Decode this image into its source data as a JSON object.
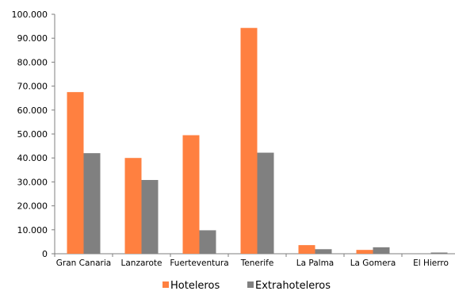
{
  "chart_data": {
    "type": "bar",
    "title": "",
    "xlabel": "",
    "ylabel": "",
    "ylim": [
      0,
      100000
    ],
    "y_ticks": [
      "0",
      "10.000",
      "20.000",
      "30.000",
      "40.000",
      "50.000",
      "60.000",
      "70.000",
      "80.000",
      "90.000",
      "100.000"
    ],
    "categories": [
      "Gran Canaria",
      "Lanzarote",
      "Fuerteventura",
      "Tenerife",
      "La Palma",
      "La Gomera",
      "El Hierro"
    ],
    "series": [
      {
        "name": "Hoteleros",
        "color": "#ff8040",
        "values": [
          67500,
          40000,
          49500,
          94300,
          3600,
          1600,
          0
        ]
      },
      {
        "name": "Extrahoteleros",
        "color": "#808080",
        "values": [
          42000,
          30800,
          9800,
          42200,
          1900,
          2700,
          500
        ]
      }
    ],
    "grid": false,
    "legend_position": "bottom"
  }
}
